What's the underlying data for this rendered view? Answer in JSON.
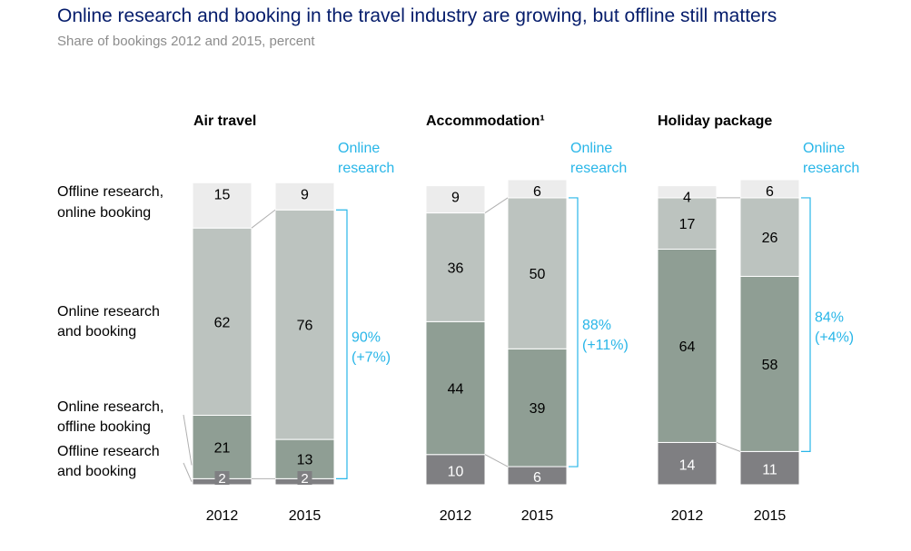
{
  "title": "Online research and booking in the travel industry are growing, but offline still matters",
  "subtitle": "Share of bookings 2012 and 2015, percent",
  "colors": {
    "offline_research_online_booking": "#ececec",
    "online_research_and_booking": "#bcc3bf",
    "online_research_offline_booking": "#8f9e94",
    "offline_research_and_booking": "#7f7f82",
    "bracket": "#29b6e8",
    "connector": "#b0b0b0"
  },
  "category_labels": [
    [
      "Offline research,",
      "online booking"
    ],
    [
      "Online research",
      "and booking"
    ],
    [
      "Online research,",
      "offline booking"
    ],
    [
      "Offline research",
      "and booking"
    ]
  ],
  "chart_data": [
    {
      "type": "bar",
      "title": "Air travel",
      "categories": [
        "2012",
        "2015"
      ],
      "series": [
        {
          "name": "Offline research and booking",
          "values": [
            2,
            2
          ]
        },
        {
          "name": "Online research, offline booking",
          "values": [
            21,
            13
          ]
        },
        {
          "name": "Online research and booking",
          "values": [
            62,
            76
          ]
        },
        {
          "name": "Offline research, online booking",
          "values": [
            15,
            9
          ]
        }
      ],
      "bracket_label": "Online research",
      "bracket_value": [
        "90%",
        "(+7%)"
      ]
    },
    {
      "type": "bar",
      "title": "Accommodation¹",
      "categories": [
        "2012",
        "2015"
      ],
      "series": [
        {
          "name": "Offline research and booking",
          "values": [
            10,
            6
          ]
        },
        {
          "name": "Online research, offline booking",
          "values": [
            44,
            39
          ]
        },
        {
          "name": "Online research and booking",
          "values": [
            36,
            50
          ]
        },
        {
          "name": "Offline research, online booking",
          "values": [
            9,
            6
          ]
        }
      ],
      "bracket_label": "Online research",
      "bracket_value": [
        "88%",
        "(+11%)"
      ]
    },
    {
      "type": "bar",
      "title": "Holiday package",
      "categories": [
        "2012",
        "2015"
      ],
      "series": [
        {
          "name": "Offline research and booking",
          "values": [
            14,
            11
          ]
        },
        {
          "name": "Online research, offline booking",
          "values": [
            64,
            58
          ]
        },
        {
          "name": "Online research and booking",
          "values": [
            17,
            26
          ]
        },
        {
          "name": "Offline research, online booking",
          "values": [
            4,
            6
          ]
        }
      ],
      "bracket_label": "Online research",
      "bracket_value": [
        "84%",
        "(+4%)"
      ]
    }
  ]
}
